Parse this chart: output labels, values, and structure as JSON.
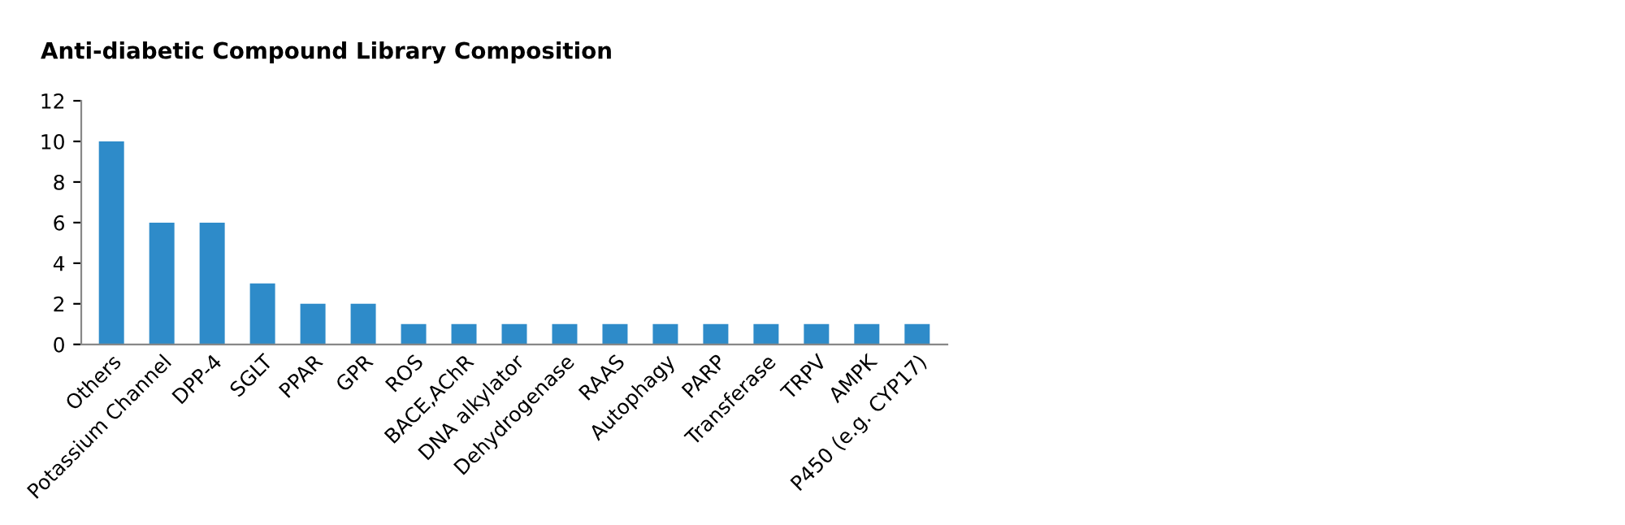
{
  "chart_data": {
    "type": "bar",
    "title": "Anti-diabetic Compound Library Composition",
    "categories": [
      "Others",
      "Potassium Channel",
      "DPP-4",
      "SGLT",
      "PPAR",
      "GPR",
      "ROS",
      "BACE,AChR",
      "DNA alkylator",
      "Dehydrogenase",
      "RAAS",
      "Autophagy",
      "PARP",
      "Transferase",
      "TRPV",
      "AMPK",
      "P450 (e.g. CYP17)"
    ],
    "values": [
      10,
      6,
      6,
      3,
      2,
      2,
      1,
      1,
      1,
      1,
      1,
      1,
      1,
      1,
      1,
      1,
      1
    ],
    "color": "#2e8bc9",
    "ylim": [
      0,
      12
    ],
    "yticks": [
      0,
      2,
      4,
      6,
      8,
      10,
      12
    ],
    "grid": false,
    "legend": false
  }
}
